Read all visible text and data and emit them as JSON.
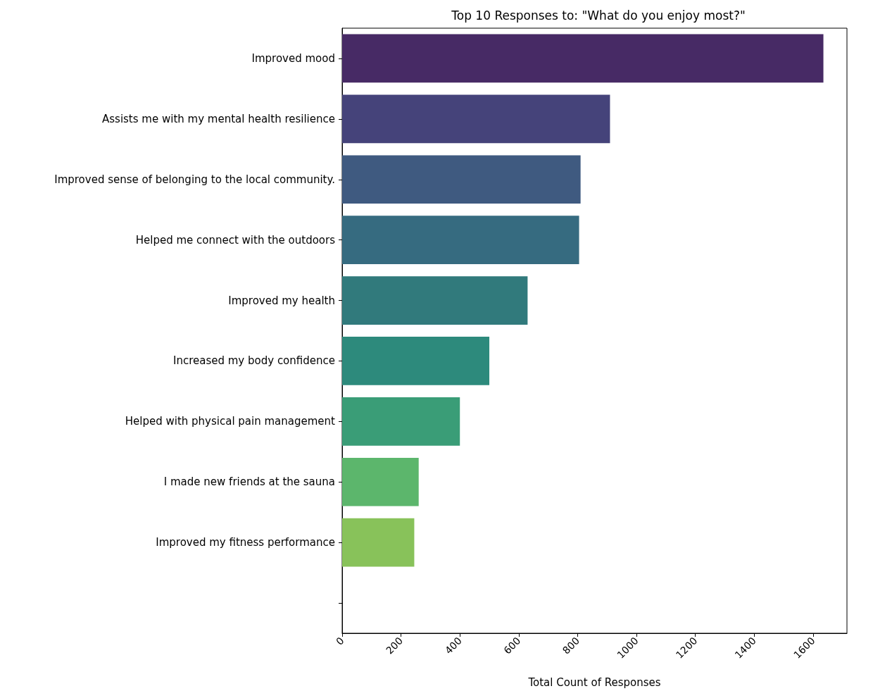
{
  "chart_data": {
    "type": "bar",
    "orientation": "horizontal",
    "title": "Top 10 Responses to: \"What do you enjoy most?\"",
    "xlabel": "Total Count of Responses",
    "categories": [
      "Improved mood",
      "Assists me with my mental health resilience",
      "Improved sense of belonging to the local community.",
      "Helped me connect with the outdoors",
      "Improved my health",
      "Increased my body confidence",
      "Helped with physical pain management",
      "I made new friends at the sauna",
      "Improved my fitness performance",
      null
    ],
    "values": [
      1635,
      910,
      810,
      805,
      630,
      500,
      400,
      260,
      245,
      null
    ],
    "colors": [
      "#472a65",
      "#45437a",
      "#3f5a80",
      "#366b80",
      "#317a7c",
      "#2d8a7c",
      "#3a9d77",
      "#5cb66c",
      "#88c25a",
      "#88c25a"
    ],
    "xlim": [
      0,
      1715
    ],
    "xticks": [
      0,
      200,
      400,
      600,
      800,
      1000,
      1200,
      1400,
      1600
    ],
    "grid": false
  }
}
